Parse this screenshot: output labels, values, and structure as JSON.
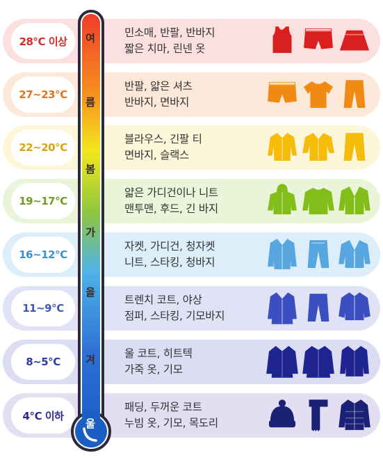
{
  "rows": [
    {
      "temp": "28℃ 이상",
      "line1": "민소매, 반팔, 반바지",
      "line2": "짧은 치마, 린넨 옷",
      "band_color": "#fbe0e0",
      "text_color": "#d42a2a",
      "icon_color": "#d9201f",
      "icons": [
        "tank-top-icon",
        "shorts-icon",
        "skirt-icon"
      ]
    },
    {
      "temp": "27~23℃",
      "line1": "반팔, 얇은 셔츠",
      "line2": "반바지, 면바지",
      "band_color": "#fce8d8",
      "text_color": "#e0731d",
      "icon_color": "#f08a12",
      "icons": [
        "shorts-icon",
        "tshirt-icon",
        "pants-icon"
      ]
    },
    {
      "temp": "22~20℃",
      "line1": "블라우스, 긴팔 티",
      "line2": "면바지, 슬랙스",
      "band_color": "#fdf6d9",
      "text_color": "#d9a30d",
      "icon_color": "#f5bd0a",
      "icons": [
        "blouse-icon",
        "shirt-icon",
        "pants-icon"
      ]
    },
    {
      "temp": "19~17℃",
      "line1": "얇은 가디건이나 니트",
      "line2": "맨투맨, 후드, 긴 바지",
      "band_color": "#e9f4d9",
      "text_color": "#6f9a24",
      "icon_color": "#82bd19",
      "icons": [
        "hoodie-icon",
        "sweater-icon",
        "cardigan-icon"
      ]
    },
    {
      "temp": "16~12℃",
      "line1": "자켓, 가디건, 청자켓",
      "line2": "니트, 스타킹, 청바지",
      "band_color": "#dceef9",
      "text_color": "#3a8fd0",
      "icon_color": "#58a6df",
      "icons": [
        "jacket-icon",
        "jeans-icon",
        "cardigan-icon"
      ]
    },
    {
      "temp": "11~9℃",
      "line1": "트렌치 코트, 야상",
      "line2": "점퍼, 스타킹, 기모바지",
      "band_color": "#e0e2f6",
      "text_color": "#3f56b3",
      "icon_color": "#3b4fc0",
      "icons": [
        "trench-coat-icon",
        "pants-icon",
        "jumper-icon"
      ]
    },
    {
      "temp": "8~5℃",
      "line1": "울 코트, 히트텍",
      "line2": "가죽 옷, 기모",
      "band_color": "#dcdcf2",
      "text_color": "#2f3aa3",
      "icon_color": "#1f2590",
      "icons": [
        "wool-coat-icon",
        "coat-icon",
        "leather-jacket-icon"
      ]
    },
    {
      "temp": "4℃ 이하",
      "line1": "패딩, 두꺼운 코트",
      "line2": "누빔 옷, 기모, 목도리",
      "band_color": "#e4def3",
      "text_color": "#2c2a8f",
      "icon_color": "#1b2175",
      "icons": [
        "beanie-icon",
        "scarf-icon",
        "padded-jacket-icon"
      ]
    }
  ],
  "seasons": [
    "여",
    "름",
    "봄",
    "가",
    "을",
    "겨",
    "울"
  ]
}
